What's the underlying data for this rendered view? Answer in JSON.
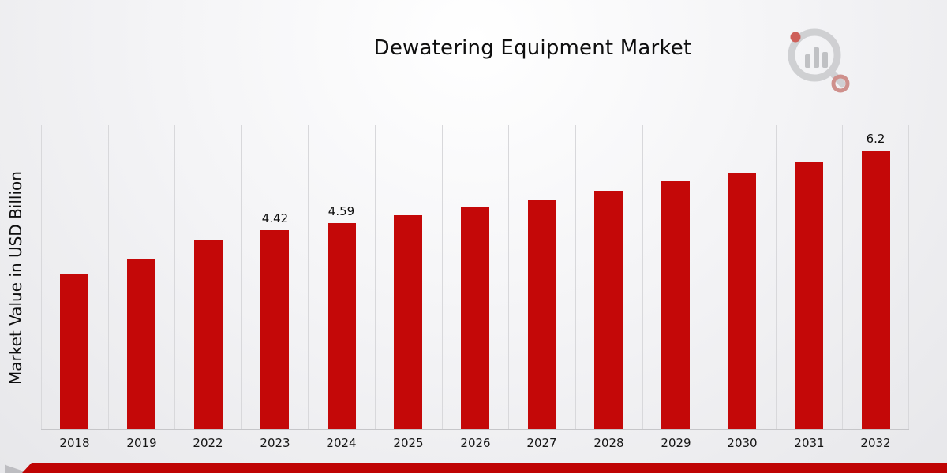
{
  "chart_data": {
    "type": "bar",
    "title": "Dewatering Equipment Market",
    "xlabel": "",
    "ylabel": "Market Value in USD Billion",
    "categories": [
      "2018",
      "2019",
      "2022",
      "2023",
      "2024",
      "2025",
      "2026",
      "2027",
      "2028",
      "2029",
      "2030",
      "2031",
      "2032"
    ],
    "values": [
      3.46,
      3.77,
      4.21,
      4.42,
      4.59,
      4.76,
      4.93,
      5.1,
      5.31,
      5.51,
      5.71,
      5.95,
      6.2
    ],
    "data_labels": {
      "2023": "4.42",
      "2024": "4.59",
      "2032": "6.2"
    },
    "unit": "USD Billion",
    "bar_color": "#c40808",
    "ylim": [
      0,
      6.8
    ],
    "grid": "vertical",
    "legend": "none"
  },
  "theme": {
    "ribbon_color": "#bf0404",
    "background_tint": "#e7e7ea",
    "text_color": "#0e0e0e",
    "gridline_color": "#d8d8db"
  },
  "icons": {
    "brand_logo": "magnifier-bar-chart-logo"
  }
}
